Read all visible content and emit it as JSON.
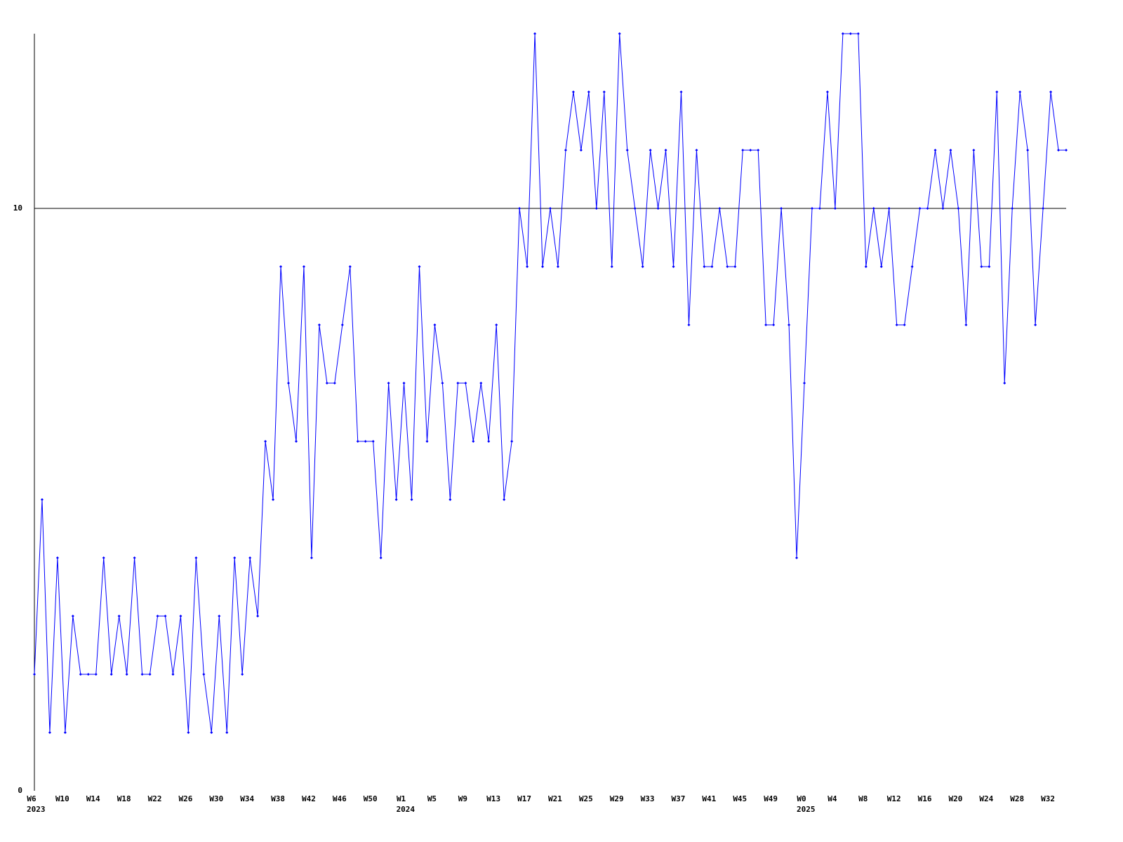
{
  "chart_data": {
    "type": "line",
    "categories": [
      "W6",
      null,
      null,
      null,
      "W10",
      null,
      null,
      null,
      "W14",
      null,
      null,
      null,
      "W18",
      null,
      null,
      null,
      "W22",
      null,
      null,
      null,
      "W26",
      null,
      null,
      null,
      "W30",
      null,
      null,
      null,
      "W34",
      null,
      null,
      null,
      "W38",
      null,
      null,
      null,
      "W42",
      null,
      null,
      null,
      "W46",
      null,
      null,
      null,
      "W50",
      null,
      null,
      null,
      "W1",
      null,
      null,
      null,
      "W5",
      null,
      null,
      null,
      "W9",
      null,
      null,
      null,
      "W13",
      null,
      null,
      null,
      "W17",
      null,
      null,
      null,
      "W21",
      null,
      null,
      null,
      "W25",
      null,
      null,
      null,
      "W29",
      null,
      null,
      null,
      "W33",
      null,
      null,
      null,
      "W37",
      null,
      null,
      null,
      "W41",
      null,
      null,
      null,
      "W45",
      null,
      null,
      null,
      "W49",
      null,
      null,
      null,
      "W0",
      null,
      null,
      null,
      "W4",
      null,
      null,
      null,
      "W8",
      null,
      null,
      null,
      "W12",
      null,
      null,
      null,
      "W16",
      null,
      null,
      null,
      "W20",
      null,
      null,
      null,
      "W24",
      null,
      null,
      null,
      "W28",
      null,
      null,
      null,
      "W32",
      null,
      null
    ],
    "years": [
      "2023",
      "2024",
      "2025"
    ],
    "values": [
      2,
      5,
      1,
      4,
      1,
      3,
      2,
      2,
      2,
      4,
      2,
      3,
      2,
      4,
      2,
      2,
      3,
      3,
      2,
      3,
      1,
      4,
      2,
      1,
      3,
      1,
      4,
      2,
      4,
      3,
      6,
      5,
      9,
      7,
      6,
      9,
      4,
      8,
      7,
      7,
      8,
      9,
      6,
      6,
      6,
      4,
      7,
      5,
      7,
      5,
      9,
      6,
      8,
      7,
      5,
      7,
      7,
      6,
      7,
      6,
      8,
      5,
      6,
      10,
      9,
      13,
      9,
      10,
      9,
      11,
      12,
      11,
      12,
      10,
      12,
      9,
      13,
      11,
      10,
      9,
      11,
      10,
      11,
      9,
      12,
      8,
      11,
      9,
      9,
      10,
      9,
      9,
      11,
      11,
      11,
      8,
      8,
      10,
      8,
      4,
      7,
      10,
      10,
      12,
      10,
      13,
      13,
      13,
      9,
      10,
      9,
      10,
      8,
      8,
      9,
      10,
      10,
      11,
      10,
      11,
      10,
      8,
      11,
      9,
      9,
      12,
      7,
      10,
      12,
      11,
      8,
      10,
      12,
      11,
      11
    ],
    "color": "#0000ff",
    "ylim": [
      0,
      13
    ],
    "yticks": [
      0,
      10
    ],
    "grid": true
  }
}
